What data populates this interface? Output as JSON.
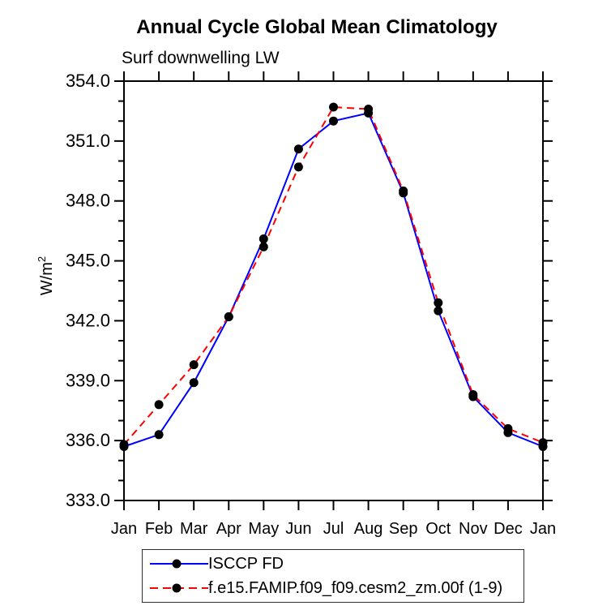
{
  "header": {
    "title": "Annual Cycle Global Mean Climatology",
    "subtitle": "Surf downwelling LW"
  },
  "chart_data": {
    "type": "line",
    "title": "Annual Cycle Global Mean Climatology",
    "subtitle": "Surf downwelling LW",
    "xlabel": "",
    "ylabel": "W/m",
    "ylabel_superscript": "2",
    "x_categories": [
      "Jan",
      "Feb",
      "Mar",
      "Apr",
      "May",
      "Jun",
      "Jul",
      "Aug",
      "Sep",
      "Oct",
      "Nov",
      "Dec",
      "Jan"
    ],
    "ylim": [
      333.0,
      354.0
    ],
    "y_major_ticks": [
      333,
      336,
      339,
      342,
      345,
      348,
      351,
      354
    ],
    "y_tick_labels": [
      "333.0",
      "336.0",
      "339.0",
      "342.0",
      "345.0",
      "348.0",
      "351.0",
      "354.0"
    ],
    "y_minor_step": 1,
    "grid": false,
    "legend_position": "bottom",
    "axis_color": "#000000",
    "marker_color": "#000000",
    "series": [
      {
        "name": "ISCCP FD",
        "color": "#0000ff",
        "style": "solid",
        "marker": "circle",
        "values": [
          335.7,
          336.3,
          338.9,
          342.2,
          346.1,
          350.6,
          352.0,
          352.4,
          348.4,
          342.5,
          338.2,
          336.4,
          335.7
        ]
      },
      {
        "name": "f.e15.FAMIP.f09_f09.cesm2_zm.00f (1-9)",
        "color": "#ff0000",
        "style": "dashed",
        "marker": "circle",
        "values": [
          335.8,
          337.8,
          339.8,
          342.2,
          345.7,
          349.7,
          352.7,
          352.6,
          348.5,
          342.9,
          338.3,
          336.6,
          335.9
        ]
      }
    ]
  }
}
